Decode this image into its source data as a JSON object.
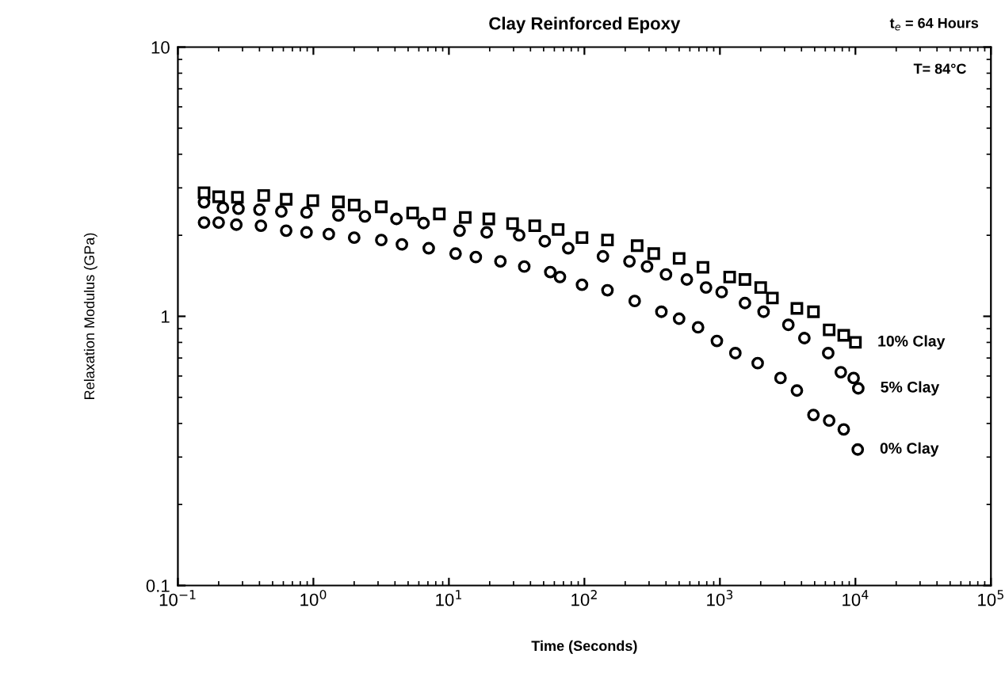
{
  "chart_data": {
    "type": "scatter",
    "title": "Clay Reinforced Epoxy",
    "xlabel": "Time (Seconds)",
    "ylabel": "Relaxation Modulus (GPa)",
    "annotations": [
      "t$_{e}$ = 64 Hours",
      "T= 84°C"
    ],
    "log": "xy",
    "xlim": [
      0.1,
      100000
    ],
    "ylim": [
      0.1,
      10
    ],
    "xticks": [
      {
        "value": 0.1,
        "label": "10$^{−1}$"
      },
      {
        "value": 1,
        "label": "10$^{0}$"
      },
      {
        "value": 10,
        "label": "10$^{1}$"
      },
      {
        "value": 100,
        "label": "10$^{2}$"
      },
      {
        "value": 1000,
        "label": "10$^{3}$"
      },
      {
        "value": 10000,
        "label": "10$^{4}$"
      },
      {
        "value": 100000,
        "label": "10$^{5}$"
      }
    ],
    "yticks": [
      0.1,
      1,
      10
    ],
    "grid": false,
    "legend": false,
    "series": [
      {
        "name": "10% Clay",
        "color": "#000000",
        "marker": "square",
        "x": [
          0.156,
          0.2,
          0.275,
          0.43,
          0.63,
          0.99,
          1.53,
          2.0,
          3.17,
          5.4,
          8.5,
          13.2,
          19.7,
          29.5,
          43,
          64,
          96,
          148,
          245,
          325,
          500,
          750,
          1180,
          1530,
          2000,
          2440,
          3700,
          4900,
          6400,
          8200,
          10000
        ],
        "values": [
          2.88,
          2.78,
          2.77,
          2.81,
          2.72,
          2.69,
          2.66,
          2.59,
          2.55,
          2.42,
          2.4,
          2.33,
          2.3,
          2.21,
          2.17,
          2.1,
          1.96,
          1.92,
          1.83,
          1.71,
          1.64,
          1.52,
          1.4,
          1.37,
          1.28,
          1.17,
          1.07,
          1.04,
          0.89,
          0.85,
          0.8
        ]
      },
      {
        "name": "5% Clay",
        "color": "#000000",
        "marker": "circle",
        "x": [
          0.156,
          0.215,
          0.28,
          0.4,
          0.58,
          0.89,
          1.53,
          2.4,
          4.1,
          6.5,
          12,
          19,
          33,
          51,
          76,
          137,
          215,
          290,
          400,
          570,
          790,
          1030,
          1530,
          2100,
          3200,
          4200,
          6300,
          7800,
          9700,
          10500
        ],
        "values": [
          2.65,
          2.53,
          2.51,
          2.49,
          2.45,
          2.43,
          2.37,
          2.35,
          2.3,
          2.22,
          2.08,
          2.05,
          2.0,
          1.9,
          1.79,
          1.67,
          1.6,
          1.53,
          1.43,
          1.37,
          1.28,
          1.23,
          1.12,
          1.04,
          0.93,
          0.83,
          0.73,
          0.62,
          0.59,
          0.54
        ]
      },
      {
        "name": "0% Clay",
        "color": "#000000",
        "marker": "circle",
        "x": [
          0.156,
          0.2,
          0.27,
          0.41,
          0.63,
          0.89,
          1.3,
          2.0,
          3.17,
          4.5,
          7.1,
          11.2,
          15.8,
          24,
          36,
          56,
          66,
          96,
          148,
          235,
          370,
          500,
          690,
          950,
          1300,
          1900,
          2800,
          3700,
          4900,
          6400,
          8200,
          10400
        ],
        "values": [
          2.23,
          2.23,
          2.19,
          2.17,
          2.08,
          2.05,
          2.02,
          1.96,
          1.92,
          1.85,
          1.79,
          1.71,
          1.66,
          1.6,
          1.53,
          1.46,
          1.4,
          1.31,
          1.25,
          1.14,
          1.04,
          0.98,
          0.91,
          0.81,
          0.73,
          0.67,
          0.59,
          0.53,
          0.43,
          0.41,
          0.38,
          0.32
        ]
      }
    ]
  }
}
